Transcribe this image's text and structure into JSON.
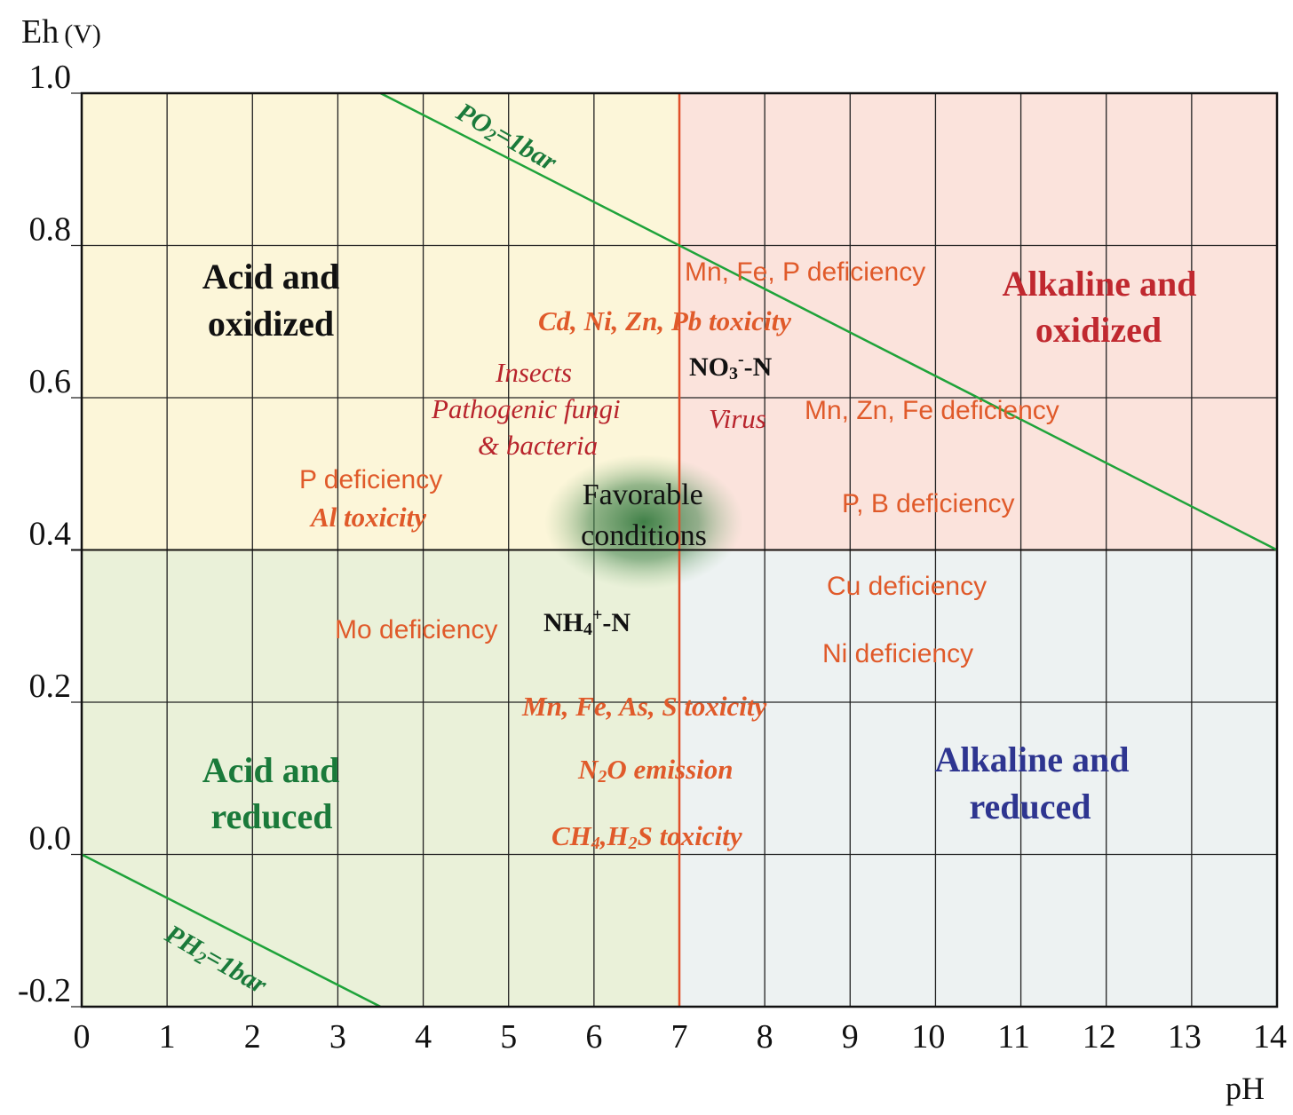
{
  "axes": {
    "y_title": "Eh",
    "y_unit": "(V)",
    "x_title": "pH",
    "x_ticks": [
      "0",
      "1",
      "2",
      "3",
      "4",
      "5",
      "6",
      "7",
      "8",
      "9",
      "10",
      "11",
      "12",
      "13",
      "14"
    ],
    "y_ticks": [
      "1.0",
      "0.8",
      "0.6",
      "0.4",
      "0.2",
      "0.0",
      "-0.2"
    ],
    "x_range": [
      0,
      14
    ],
    "y_range": [
      -0.2,
      1.0
    ]
  },
  "zones": {
    "acid_oxidized": {
      "line1": "Acid and",
      "line2": "oxidized",
      "fill": "#fcf6d9",
      "color": "#111111"
    },
    "alkaline_oxidized": {
      "line1": "Alkaline and",
      "line2": "oxidized",
      "fill": "#fbe3dc",
      "color": "#c0282f"
    },
    "acid_reduced": {
      "line1": "Acid and",
      "line2": "reduced",
      "fill": "#eaf1d9",
      "color": "#1a7a3a"
    },
    "alkaline_reduced": {
      "line1": "Alkaline and",
      "line2": "reduced",
      "fill": "#edf2f2",
      "color": "#2e3590"
    }
  },
  "boundaries": {
    "po2_line": {
      "label_base": "PO",
      "label_sub": "2",
      "label_rest": "=1bar",
      "from_ph": 3.5,
      "from_eh": 1.0,
      "to_ph": 14,
      "to_eh": 0.4,
      "color": "#1fa33a"
    },
    "ph2_line": {
      "label_base": "PH",
      "label_sub": "2",
      "label_rest": "=1bar",
      "from_ph": 0,
      "from_eh": 0.0,
      "to_ph": 3.5,
      "to_eh": -0.2,
      "color": "#1fa33a"
    },
    "neutral_ph": {
      "ph": 7,
      "color": "#e0502a"
    },
    "eh_divider": {
      "eh": 0.4
    }
  },
  "annotations": {
    "mn_fe_p_def": "Mn, Fe, P deficiency",
    "cd_ni_zn_pb_tox": "Cd, Ni, Zn, Pb toxicity",
    "insects": "Insects",
    "pathogenic_fungi": "Pathogenic fungi",
    "bacteria": "& bacteria",
    "no3_base": "NO",
    "no3_sub": "3",
    "no3_sup": "-",
    "no3_rest": "-N",
    "virus": "Virus",
    "mn_zn_fe_def": "Mn, Zn, Fe deficiency",
    "p_def": "P deficiency",
    "al_tox": "Al toxicity",
    "favorable_1": "Favorable",
    "favorable_2": "conditions",
    "p_b_def": "P, B deficiency",
    "cu_def": "Cu deficiency",
    "mo_def": "Mo deficiency",
    "nh4_base": "NH",
    "nh4_sub": "4",
    "nh4_sup": "+",
    "nh4_rest": "-N",
    "ni_def": "Ni deficiency",
    "mn_fe_as_s_tox": "Mn, Fe, As, S toxicity",
    "n2o_base": "N",
    "n2o_sub": "2",
    "n2o_rest": "O emission",
    "ch4_base": "CH",
    "ch4_sub": "4",
    "ch4_mid": ",H",
    "h2s_sub": "2",
    "h2s_rest": "S toxicity"
  }
}
